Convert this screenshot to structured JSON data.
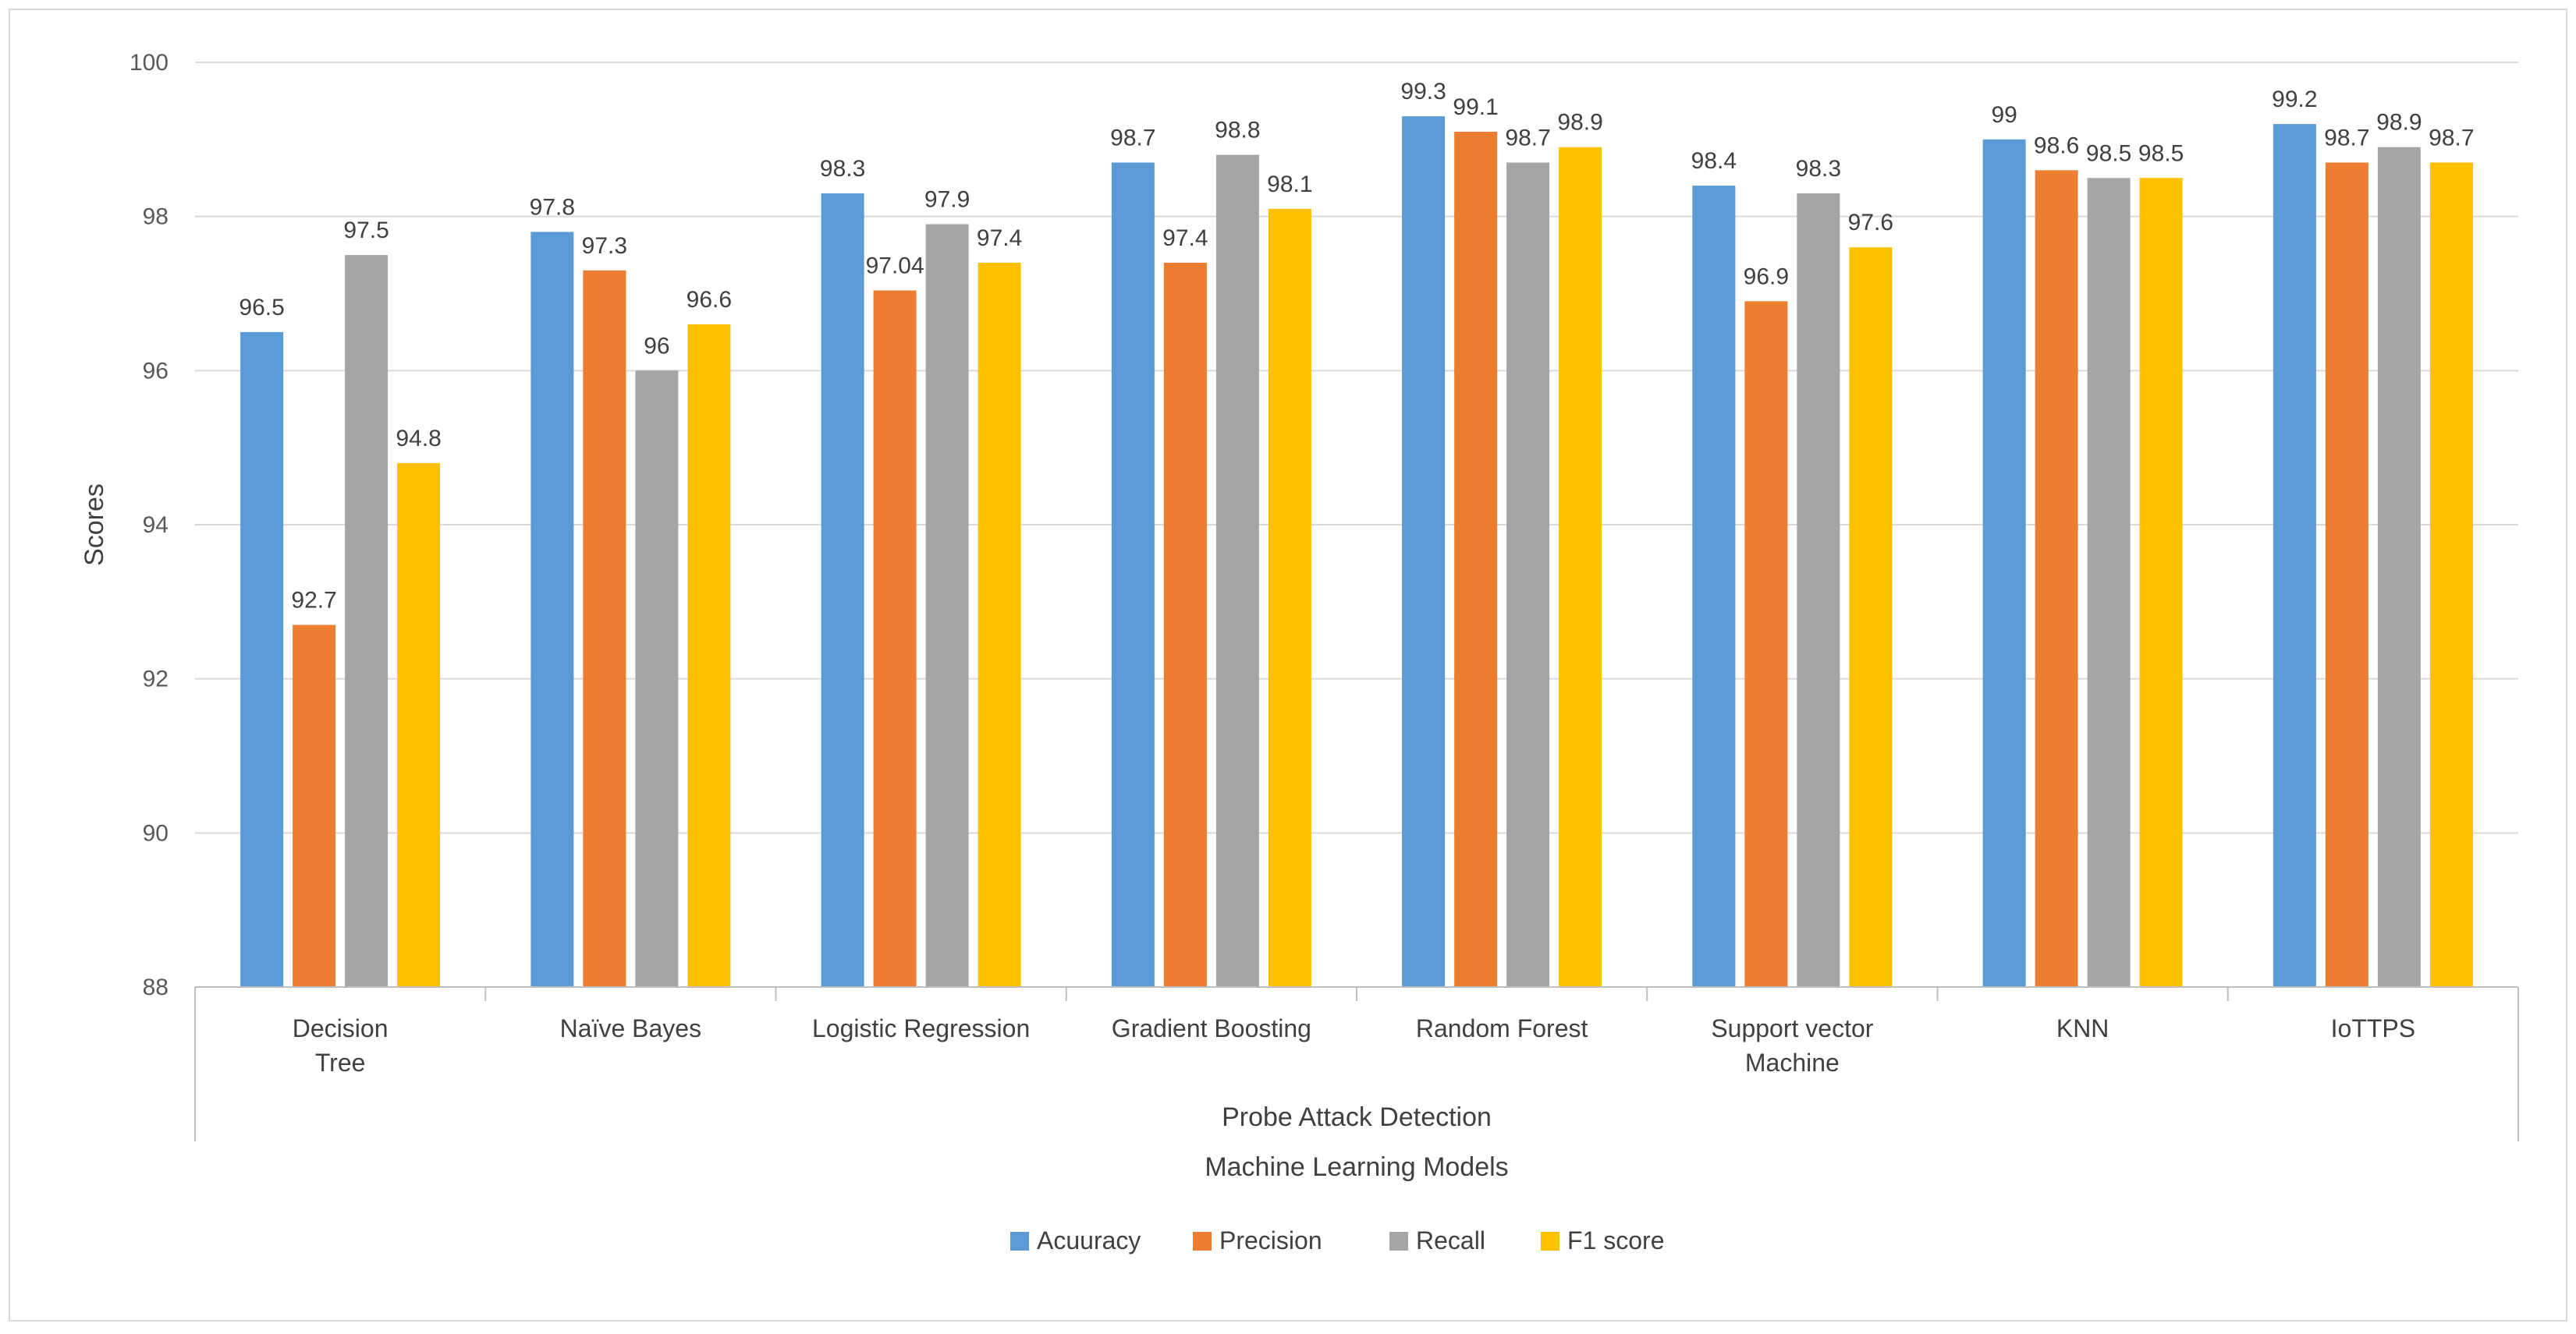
{
  "chart_data": {
    "type": "bar",
    "title": "",
    "ylabel": "Scores",
    "xlabel": "Machine Learning Models",
    "group_label": "Probe Attack Detection",
    "ylim": [
      88,
      100
    ],
    "ytick_step": 2,
    "yticks": [
      "88",
      "90",
      "92",
      "94",
      "96",
      "98",
      "100"
    ],
    "gridlines": true,
    "legend_position": "bottom",
    "categories": [
      [
        "Decision",
        "Tree"
      ],
      [
        "Naïve Bayes"
      ],
      [
        "Logistic Regression"
      ],
      [
        "Gradient Boosting"
      ],
      [
        "Random Forest"
      ],
      [
        "Support vector",
        "Machine"
      ],
      [
        "KNN"
      ],
      [
        "IoTTPS"
      ]
    ],
    "series": [
      {
        "name": "Acuuracy",
        "color": "#5B9BD5",
        "values": [
          96.5,
          97.8,
          98.3,
          98.7,
          99.3,
          98.4,
          99,
          99.2
        ],
        "labels": [
          "96.5",
          "97.8",
          "98.3",
          "98.7",
          "99.3",
          "98.4",
          "99",
          "99.2"
        ]
      },
      {
        "name": "Precision",
        "color": "#ED7D31",
        "values": [
          92.7,
          97.3,
          97.04,
          97.4,
          99.1,
          96.9,
          98.6,
          98.7
        ],
        "labels": [
          "92.7",
          "97.3",
          "97.04",
          "97.4",
          "99.1",
          "96.9",
          "98.6",
          "98.7"
        ]
      },
      {
        "name": "Recall",
        "color": "#A5A5A5",
        "values": [
          97.5,
          96,
          97.9,
          98.8,
          98.7,
          98.3,
          98.5,
          98.9
        ],
        "labels": [
          "97.5",
          "96",
          "97.9",
          "98.8",
          "98.7",
          "98.3",
          "98.5",
          "98.9"
        ]
      },
      {
        "name": "F1 score",
        "color": "#FFC000",
        "values": [
          94.8,
          96.6,
          97.4,
          98.1,
          98.9,
          97.6,
          98.5,
          98.7
        ],
        "labels": [
          "94.8",
          "96.6",
          "97.4",
          "98.1",
          "98.9",
          "97.6",
          "98.5",
          "98.7"
        ]
      }
    ]
  }
}
